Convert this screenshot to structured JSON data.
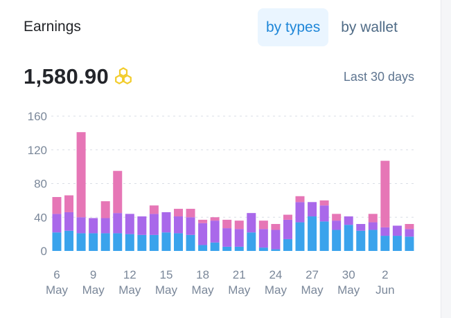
{
  "card": {
    "title": "Earnings",
    "tabs": [
      {
        "label": "by types",
        "active": true
      },
      {
        "label": "by wallet",
        "active": false
      }
    ],
    "total": "1,580.90",
    "total_icon": "honeycomb-coin-icon",
    "period": "Last 30 days"
  },
  "colors": {
    "accent": "#1e86d8",
    "series_blue": "#3aa3ec",
    "series_purple": "#a968ea",
    "series_pink": "#e676b6",
    "coin_icon": "#f2cc2b"
  },
  "chart_data": {
    "type": "bar",
    "stacked": true,
    "grid": true,
    "ylim": [
      0,
      160
    ],
    "yticks": [
      "0",
      "40",
      "80",
      "120",
      "160"
    ],
    "xtick_labels": [
      {
        "day": "6",
        "month": "May"
      },
      {
        "day": "9",
        "month": "May"
      },
      {
        "day": "12",
        "month": "May"
      },
      {
        "day": "15",
        "month": "May"
      },
      {
        "day": "18",
        "month": "May"
      },
      {
        "day": "21",
        "month": "May"
      },
      {
        "day": "24",
        "month": "May"
      },
      {
        "day": "27",
        "month": "May"
      },
      {
        "day": "30",
        "month": "May"
      },
      {
        "day": "2",
        "month": "Jun"
      }
    ],
    "categories": [
      "6 May",
      "7 May",
      "8 May",
      "9 May",
      "10 May",
      "11 May",
      "12 May",
      "13 May",
      "14 May",
      "15 May",
      "16 May",
      "17 May",
      "18 May",
      "19 May",
      "20 May",
      "21 May",
      "22 May",
      "23 May",
      "24 May",
      "25 May",
      "26 May",
      "27 May",
      "28 May",
      "29 May",
      "30 May",
      "31 May",
      "1 Jun",
      "2 Jun",
      "3 Jun",
      "4 Jun"
    ],
    "series": [
      {
        "values": [
          22,
          24,
          21,
          21,
          21,
          21,
          20,
          19,
          19,
          22,
          21,
          19,
          7,
          10,
          5,
          5,
          22,
          4,
          2,
          14,
          34,
          41,
          35,
          25,
          31,
          24,
          25,
          18,
          18,
          17
        ]
      },
      {
        "values": [
          22,
          22,
          19,
          18,
          18,
          24,
          24,
          22,
          25,
          24,
          20,
          21,
          26,
          26,
          22,
          21,
          23,
          22,
          23,
          23,
          24,
          17,
          19,
          11,
          10,
          8,
          9,
          10,
          12,
          9
        ]
      },
      {
        "values": [
          20,
          20,
          101,
          0,
          20,
          50,
          0,
          0,
          10,
          0,
          9,
          10,
          4,
          4,
          10,
          10,
          0,
          10,
          7,
          6,
          7,
          0,
          6,
          8,
          0,
          0,
          10,
          79,
          0,
          6
        ]
      }
    ]
  }
}
